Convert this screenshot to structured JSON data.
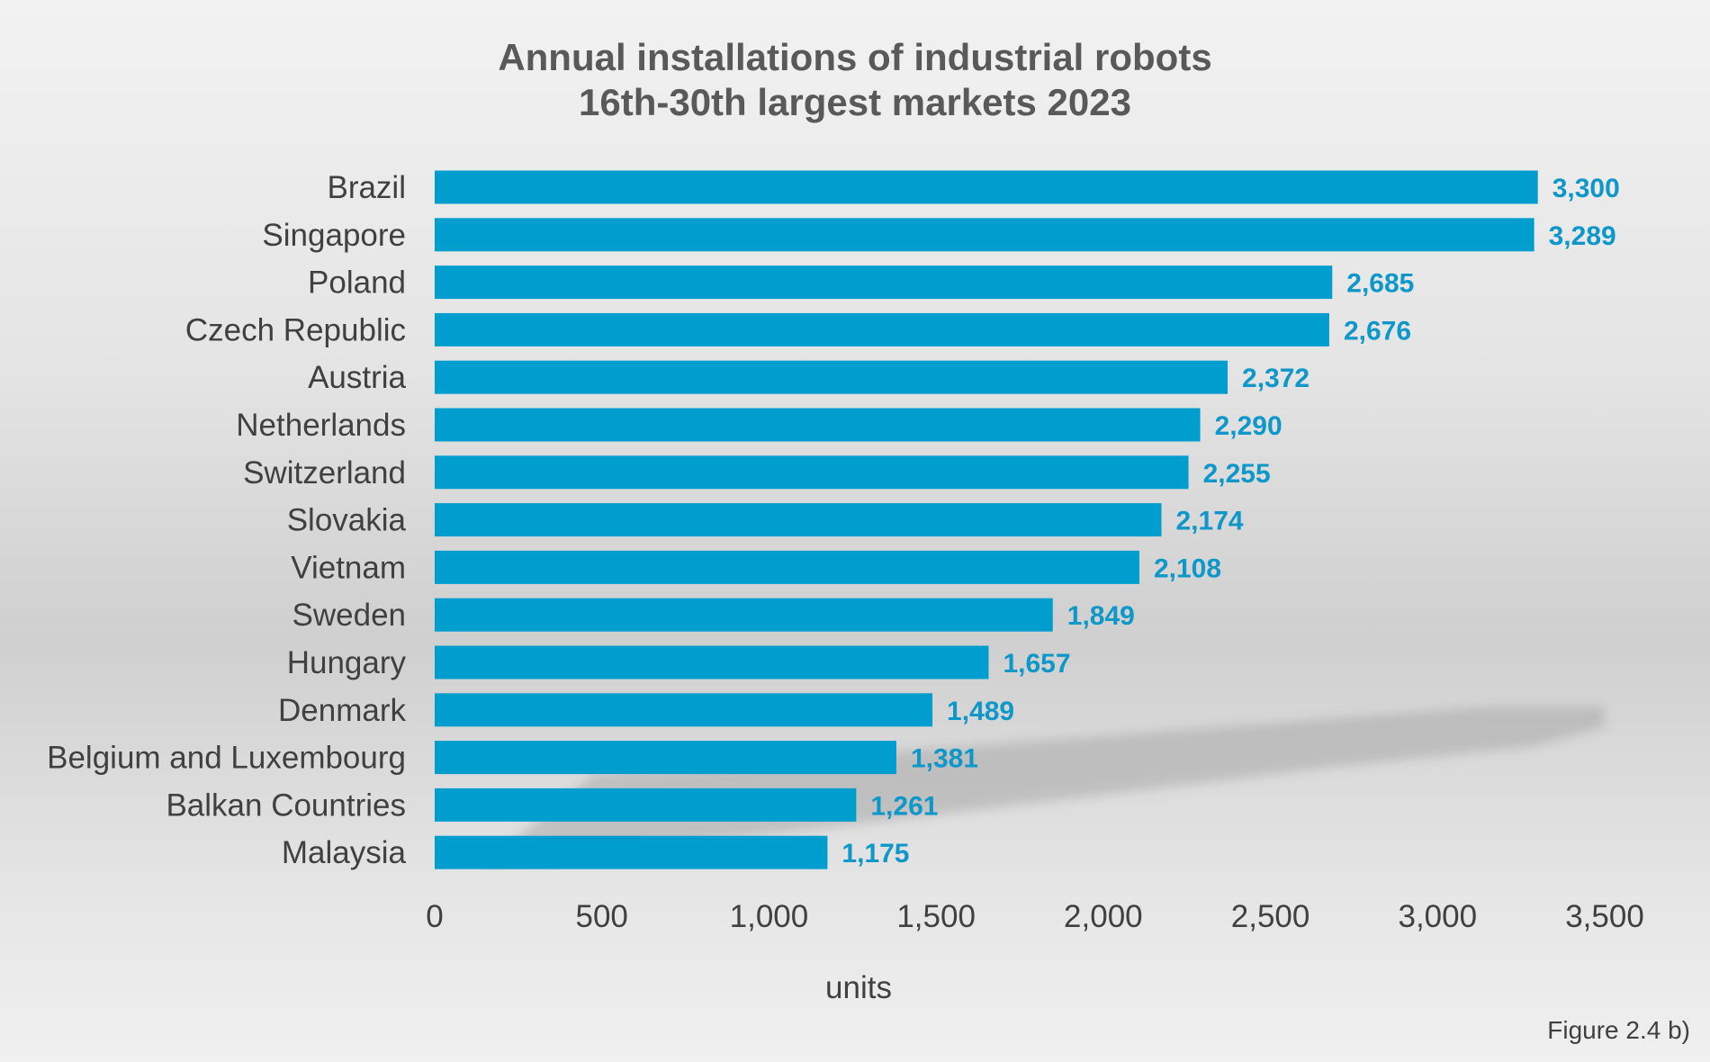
{
  "chart_data": {
    "type": "bar",
    "orientation": "horizontal",
    "title": [
      "Annual installations of industrial robots",
      "16th-30th largest markets 2023"
    ],
    "xlabel": "units",
    "ylabel": "",
    "categories": [
      "Brazil",
      "Singapore",
      "Poland",
      "Czech Republic",
      "Austria",
      "Netherlands",
      "Switzerland",
      "Slovakia",
      "Vietnam",
      "Sweden",
      "Hungary",
      "Denmark",
      "Belgium and Luxembourg",
      "Balkan Countries",
      "Malaysia"
    ],
    "values": [
      3300,
      3289,
      2685,
      2676,
      2372,
      2290,
      2255,
      2174,
      2108,
      1849,
      1657,
      1489,
      1381,
      1261,
      1175
    ],
    "value_labels": [
      "3,300",
      "3,289",
      "2,685",
      "2,676",
      "2,372",
      "2,290",
      "2,255",
      "2,174",
      "2,108",
      "1,849",
      "1,657",
      "1,489",
      "1,381",
      "1,261",
      "1,175"
    ],
    "xlim": [
      0,
      3500
    ],
    "xticks": [
      0,
      500,
      1000,
      1500,
      2000,
      2500,
      3000,
      3500
    ],
    "xtick_labels": [
      "0",
      "500",
      "1,000",
      "1,500",
      "2,000",
      "2,500",
      "3,000",
      "3,500"
    ],
    "grid": false,
    "legend": "none",
    "colors": {
      "bar": "#009ECE",
      "value_label": "#0E97C9"
    }
  },
  "footer": {
    "figure_ref": "Figure 2.4 b)"
  }
}
